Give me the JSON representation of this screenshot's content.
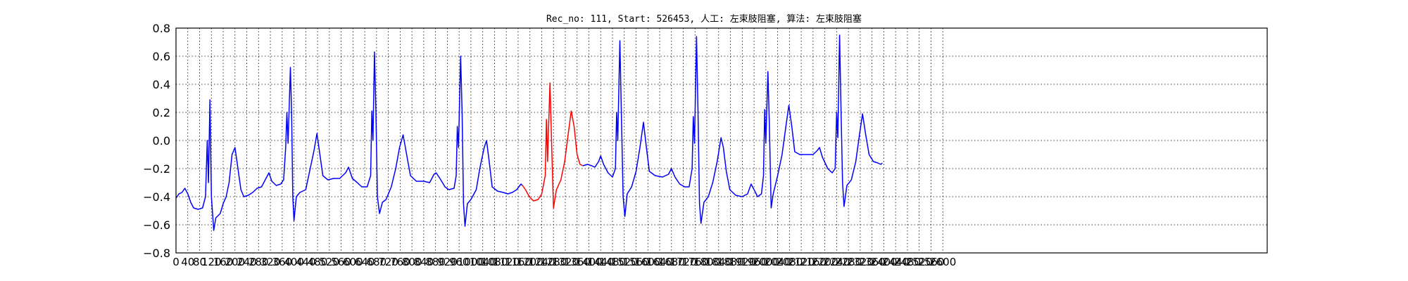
{
  "chart_data": {
    "type": "line",
    "title": "Rec_no: 111, Start: 526453, 人工: 左束肢阻塞, 算法: 左束肢阻塞",
    "xlabel": "",
    "ylabel": "",
    "xlim": [
      0,
      3700
    ],
    "ylim": [
      -0.8,
      0.8
    ],
    "grid": true,
    "y_ticks": [
      "0.8",
      "0.6",
      "0.4",
      "0.2",
      "0.0",
      "−0.2",
      "−0.4",
      "−0.6",
      "−0.8"
    ],
    "x_tick_labels": [
      "0",
      "40",
      "80",
      "120",
      "160",
      "200",
      "240",
      "280",
      "320",
      "360",
      "400",
      "440",
      "480",
      "520",
      "560",
      "600",
      "640",
      "680",
      "720",
      "760",
      "800",
      "840",
      "880",
      "920",
      "960",
      "1000",
      "1040",
      "1080",
      "1120",
      "1160",
      "1200",
      "1240",
      "1280",
      "1320",
      "1360",
      "1400",
      "1440",
      "1480",
      "1520",
      "1560",
      "1600",
      "1640",
      "1680",
      "1720",
      "1760",
      "1800",
      "1840",
      "1880",
      "1920",
      "1960",
      "2000",
      "2040",
      "2080",
      "2120",
      "2160",
      "2200",
      "2240",
      "2280",
      "2320",
      "2360",
      "2400",
      "2440",
      "2480",
      "2520",
      "2560",
      "2600"
    ],
    "series": [
      {
        "color": "#0000ff",
        "points": [
          [
            0,
            -0.41
          ],
          [
            10,
            -0.38
          ],
          [
            20,
            -0.37
          ],
          [
            30,
            -0.34
          ],
          [
            40,
            -0.38
          ],
          [
            50,
            -0.44
          ],
          [
            60,
            -0.48
          ],
          [
            75,
            -0.49
          ],
          [
            90,
            -0.48
          ],
          [
            100,
            -0.4
          ],
          [
            106,
            0.0
          ],
          [
            110,
            -0.3
          ],
          [
            115,
            0.29
          ],
          [
            120,
            -0.4
          ],
          [
            128,
            -0.64
          ],
          [
            135,
            -0.55
          ],
          [
            150,
            -0.52
          ],
          [
            160,
            -0.45
          ],
          [
            170,
            -0.4
          ],
          [
            180,
            -0.3
          ],
          [
            190,
            -0.1
          ],
          [
            200,
            -0.05
          ],
          [
            210,
            -0.2
          ],
          [
            220,
            -0.35
          ],
          [
            230,
            -0.4
          ],
          [
            245,
            -0.39
          ],
          [
            260,
            -0.37
          ],
          [
            275,
            -0.34
          ],
          [
            290,
            -0.33
          ],
          [
            305,
            -0.27
          ],
          [
            315,
            -0.23
          ],
          [
            325,
            -0.29
          ],
          [
            340,
            -0.32
          ],
          [
            355,
            -0.31
          ],
          [
            365,
            -0.28
          ],
          [
            372,
            -0.05
          ],
          [
            376,
            0.2
          ],
          [
            380,
            -0.02
          ],
          [
            388,
            0.52
          ],
          [
            392,
            0.2
          ],
          [
            396,
            -0.4
          ],
          [
            400,
            -0.57
          ],
          [
            408,
            -0.4
          ],
          [
            420,
            -0.37
          ],
          [
            440,
            -0.35
          ],
          [
            455,
            -0.2
          ],
          [
            468,
            -0.07
          ],
          [
            478,
            0.05
          ],
          [
            488,
            -0.1
          ],
          [
            498,
            -0.25
          ],
          [
            515,
            -0.28
          ],
          [
            535,
            -0.27
          ],
          [
            555,
            -0.27
          ],
          [
            575,
            -0.23
          ],
          [
            585,
            -0.19
          ],
          [
            598,
            -0.27
          ],
          [
            615,
            -0.3
          ],
          [
            630,
            -0.33
          ],
          [
            648,
            -0.33
          ],
          [
            660,
            -0.25
          ],
          [
            664,
            0.21
          ],
          [
            668,
            0.0
          ],
          [
            673,
            0.63
          ],
          [
            678,
            0.2
          ],
          [
            683,
            -0.4
          ],
          [
            690,
            -0.52
          ],
          [
            700,
            -0.44
          ],
          [
            712,
            -0.42
          ],
          [
            730,
            -0.33
          ],
          [
            745,
            -0.2
          ],
          [
            758,
            -0.05
          ],
          [
            770,
            0.04
          ],
          [
            782,
            -0.1
          ],
          [
            795,
            -0.25
          ],
          [
            815,
            -0.29
          ],
          [
            840,
            -0.29
          ],
          [
            860,
            -0.3
          ],
          [
            875,
            -0.24
          ],
          [
            882,
            -0.23
          ],
          [
            895,
            -0.27
          ],
          [
            912,
            -0.33
          ],
          [
            925,
            -0.35
          ],
          [
            943,
            -0.34
          ],
          [
            950,
            -0.25
          ],
          [
            954,
            0.1
          ],
          [
            958,
            -0.05
          ],
          [
            965,
            0.6
          ],
          [
            970,
            0.2
          ],
          [
            975,
            -0.45
          ],
          [
            980,
            -0.61
          ],
          [
            988,
            -0.45
          ],
          [
            1000,
            -0.42
          ],
          [
            1018,
            -0.35
          ],
          [
            1030,
            -0.2
          ],
          [
            1045,
            -0.05
          ],
          [
            1053,
            0.0
          ],
          [
            1062,
            -0.15
          ],
          [
            1072,
            -0.33
          ],
          [
            1090,
            -0.36
          ],
          [
            1110,
            -0.37
          ],
          [
            1125,
            -0.38
          ],
          [
            1140,
            -0.37
          ],
          [
            1155,
            -0.35
          ],
          [
            1170,
            -0.31
          ],
          [
            1175,
            -0.32
          ]
        ]
      },
      {
        "color": "#ff0000",
        "points": [
          [
            1175,
            -0.32
          ],
          [
            1185,
            -0.35
          ],
          [
            1198,
            -0.4
          ],
          [
            1212,
            -0.43
          ],
          [
            1228,
            -0.42
          ],
          [
            1240,
            -0.38
          ],
          [
            1252,
            -0.25
          ],
          [
            1256,
            0.15
          ],
          [
            1260,
            -0.15
          ],
          [
            1268,
            0.41
          ],
          [
            1274,
            -0.05
          ],
          [
            1280,
            -0.48
          ],
          [
            1290,
            -0.35
          ],
          [
            1305,
            -0.28
          ],
          [
            1318,
            -0.15
          ],
          [
            1330,
            0.05
          ],
          [
            1340,
            0.21
          ],
          [
            1350,
            0.1
          ],
          [
            1360,
            -0.1
          ],
          [
            1370,
            -0.17
          ],
          [
            1380,
            -0.18
          ]
        ]
      },
      {
        "color": "#0000ff",
        "points": [
          [
            1380,
            -0.18
          ],
          [
            1395,
            -0.17
          ],
          [
            1410,
            -0.18
          ],
          [
            1420,
            -0.19
          ],
          [
            1433,
            -0.15
          ],
          [
            1440,
            -0.11
          ],
          [
            1450,
            -0.17
          ],
          [
            1465,
            -0.23
          ],
          [
            1480,
            -0.26
          ],
          [
            1490,
            -0.2
          ],
          [
            1494,
            0.2
          ],
          [
            1498,
            0.0
          ],
          [
            1505,
            0.71
          ],
          [
            1510,
            0.2
          ],
          [
            1516,
            -0.4
          ],
          [
            1522,
            -0.54
          ],
          [
            1530,
            -0.38
          ],
          [
            1545,
            -0.33
          ],
          [
            1560,
            -0.22
          ],
          [
            1573,
            -0.05
          ],
          [
            1585,
            0.13
          ],
          [
            1595,
            -0.05
          ],
          [
            1605,
            -0.22
          ],
          [
            1625,
            -0.25
          ],
          [
            1650,
            -0.26
          ],
          [
            1670,
            -0.24
          ],
          [
            1680,
            -0.2
          ],
          [
            1692,
            -0.26
          ],
          [
            1708,
            -0.31
          ],
          [
            1725,
            -0.33
          ],
          [
            1740,
            -0.33
          ],
          [
            1750,
            -0.2
          ],
          [
            1754,
            0.17
          ],
          [
            1758,
            -0.02
          ],
          [
            1765,
            0.74
          ],
          [
            1770,
            0.2
          ],
          [
            1775,
            -0.45
          ],
          [
            1780,
            -0.59
          ],
          [
            1790,
            -0.44
          ],
          [
            1805,
            -0.4
          ],
          [
            1820,
            -0.3
          ],
          [
            1835,
            -0.15
          ],
          [
            1848,
            0.02
          ],
          [
            1856,
            -0.05
          ],
          [
            1866,
            -0.22
          ],
          [
            1878,
            -0.35
          ],
          [
            1898,
            -0.39
          ],
          [
            1920,
            -0.4
          ],
          [
            1938,
            -0.38
          ],
          [
            1950,
            -0.31
          ],
          [
            1960,
            -0.35
          ],
          [
            1972,
            -0.4
          ],
          [
            1985,
            -0.38
          ],
          [
            1992,
            -0.25
          ],
          [
            1996,
            0.22
          ],
          [
            2000,
            -0.02
          ],
          [
            2007,
            0.49
          ],
          [
            2012,
            0.1
          ],
          [
            2018,
            -0.48
          ],
          [
            2025,
            -0.38
          ],
          [
            2040,
            -0.25
          ],
          [
            2055,
            -0.1
          ],
          [
            2068,
            0.1
          ],
          [
            2078,
            0.25
          ],
          [
            2088,
            0.1
          ],
          [
            2098,
            -0.08
          ],
          [
            2115,
            -0.1
          ],
          [
            2140,
            -0.1
          ],
          [
            2160,
            -0.1
          ],
          [
            2175,
            -0.07
          ],
          [
            2182,
            -0.05
          ],
          [
            2192,
            -0.12
          ],
          [
            2210,
            -0.2
          ],
          [
            2225,
            -0.23
          ],
          [
            2235,
            -0.2
          ],
          [
            2240,
            0.2
          ],
          [
            2244,
            0.02
          ],
          [
            2250,
            0.75
          ],
          [
            2255,
            0.2
          ],
          [
            2260,
            -0.3
          ],
          [
            2265,
            -0.47
          ],
          [
            2275,
            -0.32
          ],
          [
            2290,
            -0.28
          ],
          [
            2305,
            -0.15
          ],
          [
            2318,
            0.05
          ],
          [
            2328,
            0.19
          ],
          [
            2338,
            0.05
          ],
          [
            2350,
            -0.1
          ],
          [
            2365,
            -0.15
          ],
          [
            2380,
            -0.16
          ],
          [
            2390,
            -0.17
          ],
          [
            2395,
            -0.16
          ]
        ]
      }
    ]
  }
}
